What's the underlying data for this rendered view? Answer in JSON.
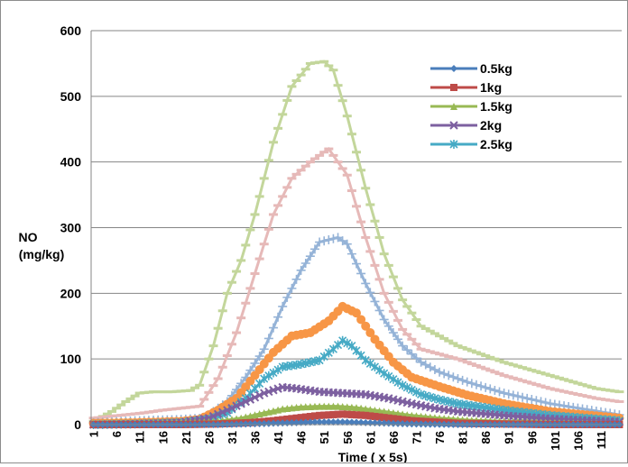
{
  "chart_data": {
    "type": "line",
    "title": "",
    "xlabel": "Time ( x 5s)",
    "ylabel_line1": "NO",
    "ylabel_line2": "(mg/kg)",
    "ylim": [
      0,
      600
    ],
    "yticks": [
      0,
      100,
      200,
      300,
      400,
      500,
      600
    ],
    "grid": true,
    "legend": "top-right",
    "xtick_labels": [
      "1",
      "6",
      "11",
      "16",
      "21",
      "26",
      "31",
      "36",
      "41",
      "46",
      "51",
      "56",
      "61",
      "66",
      "71",
      "76",
      "81",
      "86",
      "91",
      "96",
      "101",
      "106",
      "111"
    ],
    "n_points": 115,
    "series": [
      {
        "name": "0.5kg",
        "color": "#4a7ebb",
        "marker": "diamond",
        "x": [
          1,
          10,
          20,
          28,
          35,
          40,
          45,
          50,
          55,
          60,
          65,
          70,
          80,
          90,
          100,
          115
        ],
        "y": [
          0,
          0,
          0,
          0,
          1,
          2,
          3,
          4,
          4,
          3,
          2,
          1,
          0,
          0,
          0,
          0
        ]
      },
      {
        "name": "1kg",
        "color": "#be4b48",
        "marker": "square",
        "x": [
          1,
          10,
          20,
          28,
          35,
          40,
          45,
          50,
          55,
          60,
          65,
          70,
          80,
          90,
          100,
          115
        ],
        "y": [
          0,
          0,
          0,
          1,
          3,
          6,
          10,
          14,
          16,
          14,
          10,
          6,
          2,
          1,
          0,
          0
        ]
      },
      {
        "name": "1.5kg",
        "color": "#98b954",
        "marker": "triangle",
        "x": [
          1,
          10,
          20,
          28,
          33,
          38,
          42,
          46,
          50,
          54,
          58,
          62,
          66,
          70,
          76,
          82,
          90,
          100,
          115
        ],
        "y": [
          2,
          3,
          3,
          5,
          10,
          18,
          24,
          27,
          28,
          28,
          26,
          22,
          18,
          14,
          10,
          7,
          5,
          3,
          1
        ]
      },
      {
        "name": "2kg",
        "color": "#7d60a0",
        "marker": "x",
        "x": [
          1,
          10,
          20,
          26,
          30,
          34,
          38,
          42,
          45,
          50,
          55,
          60,
          65,
          70,
          75,
          80,
          90,
          100,
          115
        ],
        "y": [
          0,
          1,
          3,
          10,
          22,
          35,
          48,
          57,
          55,
          50,
          48,
          46,
          40,
          32,
          25,
          20,
          14,
          9,
          4
        ]
      },
      {
        "name": "2.5kg",
        "color": "#46aac5",
        "marker": "asterisk",
        "x": [
          1,
          10,
          20,
          26,
          30,
          34,
          38,
          42,
          46,
          50,
          53,
          55,
          57,
          60,
          64,
          68,
          72,
          76,
          80,
          90,
          100,
          115
        ],
        "y": [
          0,
          1,
          3,
          8,
          18,
          40,
          70,
          88,
          92,
          98,
          115,
          128,
          120,
          98,
          78,
          60,
          46,
          38,
          32,
          22,
          14,
          6
        ]
      },
      {
        "name": "",
        "color": "#f79646",
        "marker": "circle",
        "x": [
          1,
          10,
          20,
          24,
          28,
          32,
          36,
          40,
          44,
          48,
          52,
          55,
          58,
          62,
          66,
          70,
          76,
          82,
          90,
          100,
          115
        ],
        "y": [
          2,
          3,
          5,
          8,
          22,
          40,
          75,
          110,
          135,
          140,
          158,
          180,
          170,
          130,
          95,
          72,
          58,
          45,
          32,
          20,
          10
        ]
      },
      {
        "name": "",
        "color": "#95b3d7",
        "marker": "plus",
        "x": [
          1,
          10,
          20,
          25,
          30,
          34,
          38,
          42,
          46,
          50,
          54,
          56,
          60,
          64,
          68,
          72,
          76,
          82,
          90,
          100,
          115
        ],
        "y": [
          3,
          6,
          8,
          10,
          35,
          72,
          115,
          180,
          235,
          278,
          285,
          275,
          215,
          160,
          120,
          95,
          80,
          65,
          48,
          32,
          15
        ]
      },
      {
        "name": "",
        "color": "#e6b9b8",
        "marker": "dash",
        "x": [
          1,
          8,
          12,
          16,
          20,
          24,
          28,
          32,
          36,
          40,
          44,
          48,
          52,
          56,
          60,
          64,
          68,
          72,
          80,
          90,
          100,
          110,
          115
        ],
        "y": [
          10,
          15,
          18,
          22,
          25,
          28,
          70,
          140,
          230,
          320,
          375,
          400,
          420,
          380,
          285,
          200,
          145,
          115,
          100,
          75,
          55,
          40,
          35
        ]
      },
      {
        "name": "",
        "color": "#c3d69b",
        "marker": "dash",
        "x": [
          1,
          5,
          8,
          11,
          14,
          18,
          22,
          24,
          27,
          30,
          33,
          36,
          40,
          44,
          48,
          51,
          53,
          56,
          60,
          64,
          68,
          72,
          80,
          90,
          100,
          110,
          115
        ],
        "y": [
          5,
          20,
          35,
          48,
          50,
          50,
          52,
          60,
          120,
          200,
          250,
          320,
          430,
          515,
          550,
          553,
          540,
          470,
          360,
          260,
          190,
          150,
          120,
          95,
          75,
          55,
          50
        ]
      }
    ]
  }
}
